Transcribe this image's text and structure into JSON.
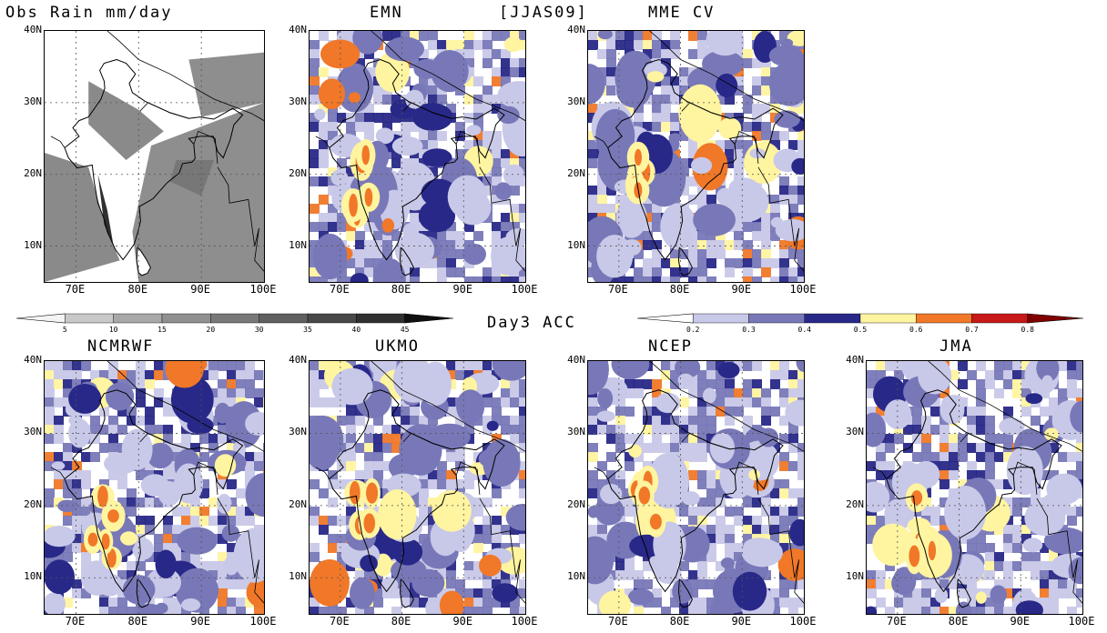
{
  "figure": {
    "season_tag": "[JJAS09]",
    "middle_label": "Day3 ACC"
  },
  "panels": [
    {
      "id": "obs",
      "title": "Obs Rain mm/day",
      "style": "gray"
    },
    {
      "id": "emn",
      "title": "EMN",
      "style": "color"
    },
    {
      "id": "mme",
      "title": "MME CV",
      "style": "color"
    },
    {
      "id": "ncmrwf",
      "title": "NCMRWF",
      "style": "color"
    },
    {
      "id": "ukmo",
      "title": "UKMO",
      "style": "color"
    },
    {
      "id": "ncep",
      "title": "NCEP",
      "style": "color"
    },
    {
      "id": "jma",
      "title": "JMA",
      "style": "color"
    }
  ],
  "axes": {
    "lat_labels": [
      "40N",
      "30N",
      "20N",
      "10N"
    ],
    "lon_labels": [
      "70E",
      "80E",
      "90E",
      "100E"
    ]
  },
  "colorbars": {
    "gray": {
      "labels": [
        "5",
        "10",
        "15",
        "20",
        "30",
        "35",
        "40",
        "45"
      ],
      "colors": [
        "#f4f4f4",
        "#c8c8c8",
        "#a8a8a8",
        "#909090",
        "#787878",
        "#606060",
        "#484848",
        "#303030",
        "#101010"
      ]
    },
    "color": {
      "labels": [
        "0.2",
        "0.3",
        "0.4",
        "0.5",
        "0.6",
        "0.7",
        "0.8"
      ],
      "colors": [
        "#ffffff",
        "#c8c8e8",
        "#7878b8",
        "#282888",
        "#fff4a0",
        "#f07828",
        "#c81818",
        "#800000"
      ]
    }
  }
}
